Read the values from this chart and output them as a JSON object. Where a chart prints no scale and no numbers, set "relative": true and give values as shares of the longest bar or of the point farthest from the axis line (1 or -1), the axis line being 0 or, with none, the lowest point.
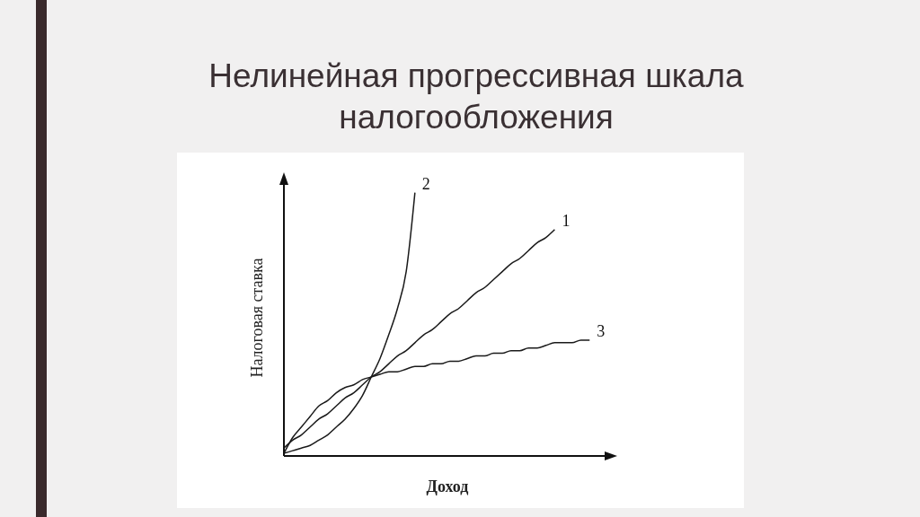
{
  "chart_data": {
    "type": "line",
    "title": "Нелинейная прогрессивная шкала налогообложения",
    "xlabel": "Доход",
    "ylabel": "Налоговая ставка",
    "relative": true,
    "categories": [
      null,
      null,
      null,
      null,
      null,
      null,
      null,
      null,
      null,
      null,
      null,
      null,
      null,
      null,
      null,
      null,
      null,
      null,
      null,
      null,
      null,
      null,
      null,
      null,
      null,
      null,
      null,
      null,
      null,
      null,
      null,
      null,
      null,
      null,
      null,
      null
    ],
    "series": [
      {
        "name": "1",
        "color": "#1a1a1a",
        "values": [
          0.03,
          0.06,
          0.08,
          0.11,
          0.14,
          0.16,
          0.19,
          0.22,
          0.24,
          0.27,
          0.3,
          0.32,
          0.35,
          0.38,
          0.4,
          0.43,
          0.46,
          0.48,
          0.51,
          0.54,
          0.56,
          0.59,
          0.62,
          0.64,
          0.67,
          0.7,
          0.73,
          0.75,
          0.78,
          0.81,
          0.83,
          0.86,
          null,
          null,
          null,
          null
        ]
      },
      {
        "name": "2",
        "color": "#1a1a1a",
        "values": [
          0.01,
          0.02,
          0.03,
          0.04,
          0.06,
          0.08,
          0.11,
          0.14,
          0.18,
          0.23,
          0.3,
          0.37,
          0.46,
          0.56,
          0.7,
          1,
          null,
          null,
          null,
          null,
          null,
          null,
          null,
          null,
          null,
          null,
          null,
          null,
          null,
          null,
          null,
          null,
          null,
          null,
          null,
          null
        ]
      },
      {
        "name": "3",
        "color": "#1a1a1a",
        "values": [
          0.01,
          0.07,
          0.11,
          0.15,
          0.19,
          0.21,
          0.24,
          0.26,
          0.27,
          0.29,
          0.3,
          0.31,
          0.32,
          0.32,
          0.33,
          0.34,
          0.34,
          0.35,
          0.35,
          0.36,
          0.36,
          0.37,
          0.38,
          0.38,
          0.39,
          0.39,
          0.4,
          0.4,
          0.41,
          0.41,
          0.42,
          0.43,
          0.43,
          0.43,
          0.44,
          0.44
        ]
      }
    ]
  }
}
